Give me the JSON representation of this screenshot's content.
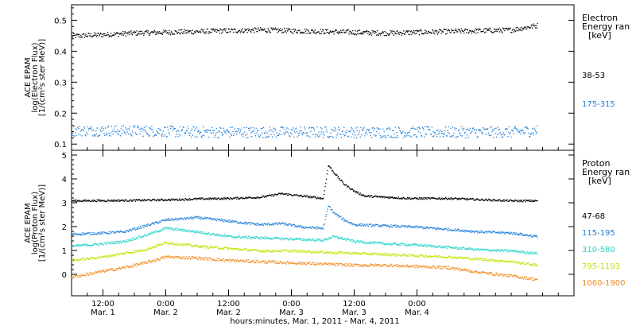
{
  "chart_data": [
    {
      "type": "scatter",
      "panel": "electron",
      "ylabel_lines": [
        "ACE EPAM",
        "log(Electron Flux)",
        "[1/(cm²s ster MeV)]"
      ],
      "ylim": [
        0.08,
        0.55
      ],
      "yticks": [
        0.1,
        0.2,
        0.3,
        0.4,
        0.5
      ],
      "ytick_labels": [
        "0.1",
        "0.2",
        "0.3",
        "0.4",
        "0.5"
      ],
      "legend_title": [
        "Electron",
        "Energy ran",
        "[keV]"
      ],
      "series": [
        {
          "name": "38-53",
          "color": "#000000",
          "x": [
            0,
            12,
            24,
            36,
            48,
            60,
            72,
            84,
            89
          ],
          "y": [
            0.45,
            0.46,
            0.465,
            0.47,
            0.465,
            0.46,
            0.465,
            0.47,
            0.485
          ],
          "noise": 0.008
        },
        {
          "name": "175-315",
          "color": "#1f7fd6",
          "x": [
            0,
            12,
            24,
            36,
            48,
            60,
            72,
            84,
            89
          ],
          "y": [
            0.145,
            0.145,
            0.14,
            0.14,
            0.14,
            0.14,
            0.14,
            0.14,
            0.145
          ],
          "noise": 0.018
        }
      ]
    },
    {
      "type": "scatter",
      "panel": "proton",
      "ylabel_lines": [
        "ACE EPAM",
        "log(Proton Flux)",
        "[1/(cm²s ster MeV)]"
      ],
      "ylim": [
        -0.9,
        5.2
      ],
      "yticks": [
        0,
        1,
        2,
        3,
        4,
        5
      ],
      "ytick_labels": [
        "0",
        "1",
        "2",
        "3",
        "4",
        "5"
      ],
      "legend_title": [
        "Proton",
        "Energy ran",
        "[keV]"
      ],
      "series": [
        {
          "name": "47-68",
          "color": "#000000",
          "x": [
            0,
            12,
            20,
            24,
            30,
            36,
            40,
            44,
            48,
            49,
            50,
            52,
            54,
            56,
            60,
            65,
            72,
            78,
            84,
            89
          ],
          "y": [
            3.1,
            3.12,
            3.15,
            3.18,
            3.2,
            3.25,
            3.4,
            3.3,
            3.2,
            4.6,
            4.3,
            3.8,
            3.5,
            3.3,
            3.25,
            3.2,
            3.2,
            3.15,
            3.1,
            3.1
          ],
          "noise": 0.04
        },
        {
          "name": "115-195",
          "color": "#1f7fd6",
          "x": [
            0,
            6,
            10,
            14,
            18,
            24,
            30,
            36,
            40,
            44,
            48,
            49,
            50,
            52,
            54,
            60,
            66,
            72,
            78,
            84,
            89
          ],
          "y": [
            1.7,
            1.75,
            1.8,
            2.05,
            2.3,
            2.4,
            2.25,
            2.1,
            2.15,
            2.0,
            1.95,
            2.9,
            2.6,
            2.3,
            2.1,
            2.05,
            2.0,
            1.9,
            1.8,
            1.75,
            1.6
          ],
          "noise": 0.05
        },
        {
          "name": "310-580",
          "color": "#22d3c8",
          "x": [
            0,
            6,
            10,
            14,
            18,
            24,
            30,
            36,
            42,
            48,
            50,
            54,
            60,
            66,
            72,
            78,
            84,
            89
          ],
          "y": [
            1.2,
            1.3,
            1.4,
            1.65,
            1.95,
            1.8,
            1.6,
            1.55,
            1.5,
            1.45,
            1.6,
            1.4,
            1.3,
            1.25,
            1.15,
            1.05,
            1.0,
            0.9
          ],
          "noise": 0.05
        },
        {
          "name": "795-1193",
          "color": "#c7e000",
          "x": [
            0,
            6,
            10,
            14,
            18,
            24,
            30,
            36,
            42,
            48,
            54,
            60,
            66,
            72,
            78,
            84,
            89
          ],
          "y": [
            0.6,
            0.75,
            0.9,
            1.05,
            1.35,
            1.2,
            1.1,
            1.0,
            1.0,
            0.95,
            0.9,
            0.85,
            0.8,
            0.75,
            0.65,
            0.55,
            0.4
          ],
          "noise": 0.05
        },
        {
          "name": "1060-1900",
          "color": "#f28a1e",
          "x": [
            0,
            6,
            10,
            14,
            18,
            24,
            30,
            36,
            42,
            48,
            54,
            60,
            66,
            72,
            78,
            84,
            89
          ],
          "y": [
            -0.1,
            0.15,
            0.3,
            0.5,
            0.75,
            0.7,
            0.6,
            0.55,
            0.5,
            0.45,
            0.4,
            0.4,
            0.35,
            0.3,
            0.1,
            -0.05,
            -0.2
          ],
          "noise": 0.06
        }
      ]
    }
  ],
  "x_axis": {
    "xlim": [
      0,
      96
    ],
    "ticks": [
      {
        "x": 6,
        "time": "12:00",
        "day": "Mar. 1"
      },
      {
        "x": 18,
        "time": "0:00",
        "day": "Mar. 2"
      },
      {
        "x": 30,
        "time": "12:00",
        "day": "Mar. 2"
      },
      {
        "x": 42,
        "time": "0:00",
        "day": "Mar. 3"
      },
      {
        "x": 54,
        "time": "12:00",
        "day": "Mar. 3"
      },
      {
        "x": 66,
        "time": "0:00",
        "day": "Mar. 4"
      }
    ],
    "label": "hours:minutes, Mar.  1, 2011 - Mar.  4, 2011"
  }
}
